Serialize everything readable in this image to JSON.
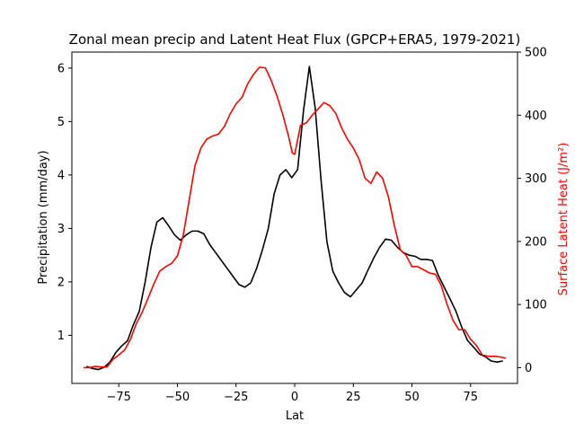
{
  "chart_data": {
    "type": "line",
    "title": "Zonal mean precip and Latent Heat Flux (GPCP+ERA5, 1979-2021)",
    "xlabel": "Lat",
    "ylabel_left": "Precipitation (mm/day)",
    "ylabel_right": "Surface Latent Heat (J/m²)",
    "xlim": [
      -95,
      95
    ],
    "ylim_left": [
      0.1,
      6.3
    ],
    "ylim_right": [
      -25,
      500
    ],
    "x_ticks": [
      -75,
      -50,
      -25,
      0,
      25,
      50,
      75
    ],
    "y_left_ticks": [
      1,
      2,
      3,
      4,
      5,
      6
    ],
    "y_right_ticks": [
      0,
      100,
      200,
      300,
      400,
      500
    ],
    "grid": false,
    "legend": "none",
    "series": [
      {
        "axis": "left",
        "color": "#000000",
        "x": [
          -88.75,
          -86.25,
          -83.75,
          -81.25,
          -78.75,
          -76.25,
          -73.75,
          -71.25,
          -68.75,
          -66.25,
          -63.75,
          -61.25,
          -58.75,
          -56.25,
          -53.75,
          -51.25,
          -48.75,
          -46.25,
          -43.75,
          -41.25,
          -38.75,
          -36.25,
          -33.75,
          -31.25,
          -28.75,
          -26.25,
          -23.75,
          -21.25,
          -18.75,
          -16.25,
          -13.75,
          -11.25,
          -8.75,
          -6.25,
          -3.75,
          -1.25,
          1.25,
          3.75,
          6.25,
          8.75,
          11.25,
          13.75,
          16.25,
          18.75,
          21.25,
          23.75,
          26.25,
          28.75,
          31.25,
          33.75,
          36.25,
          38.75,
          41.25,
          43.75,
          46.25,
          48.75,
          51.25,
          53.75,
          56.25,
          58.75,
          61.25,
          63.75,
          66.25,
          68.75,
          71.25,
          73.75,
          76.25,
          78.75,
          81.25,
          83.75,
          86.25,
          88.75
        ],
        "values": [
          0.42,
          0.38,
          0.36,
          0.4,
          0.5,
          0.68,
          0.8,
          0.9,
          1.2,
          1.45,
          2.0,
          2.65,
          3.12,
          3.2,
          3.05,
          2.88,
          2.78,
          2.88,
          2.95,
          2.95,
          2.9,
          2.7,
          2.55,
          2.4,
          2.25,
          2.1,
          1.95,
          1.9,
          1.98,
          2.25,
          2.6,
          3.0,
          3.65,
          4.0,
          4.1,
          3.95,
          4.1,
          5.2,
          6.03,
          5.25,
          3.9,
          2.75,
          2.2,
          1.98,
          1.8,
          1.72,
          1.85,
          1.98,
          2.22,
          2.45,
          2.65,
          2.8,
          2.78,
          2.65,
          2.55,
          2.5,
          2.48,
          2.42,
          2.42,
          2.4,
          2.12,
          1.9,
          1.68,
          1.45,
          1.15,
          0.9,
          0.78,
          0.65,
          0.6,
          0.52,
          0.5,
          0.52
        ]
      },
      {
        "axis": "right",
        "color": "#ff0000",
        "x": [
          -90,
          -87.5,
          -85,
          -82.5,
          -80,
          -77.5,
          -75,
          -72.5,
          -70,
          -67.5,
          -65,
          -62.5,
          -60,
          -57.5,
          -55,
          -52.5,
          -50,
          -47.5,
          -45,
          -42.5,
          -40,
          -37.5,
          -35,
          -32.5,
          -30,
          -27.5,
          -25,
          -22.5,
          -20,
          -17.5,
          -15,
          -12.5,
          -10,
          -7.5,
          -5,
          -2.5,
          -1,
          0,
          2.5,
          5,
          7.5,
          10,
          12.5,
          15,
          17.5,
          20,
          22.5,
          25,
          27.5,
          30,
          32.5,
          35,
          37.5,
          40,
          42.5,
          45,
          47.5,
          50,
          52.5,
          55,
          57.5,
          60,
          62.5,
          65,
          67.5,
          70,
          72.5,
          75,
          77.5,
          80,
          82.5,
          85,
          87.5,
          90
        ],
        "values": [
          0,
          0,
          2,
          1,
          1,
          13,
          20,
          28,
          45,
          70,
          88,
          110,
          133,
          153,
          160,
          165,
          177,
          210,
          265,
          320,
          348,
          362,
          367,
          370,
          382,
          402,
          418,
          428,
          450,
          465,
          476,
          475,
          455,
          430,
          400,
          365,
          340,
          338,
          384,
          388,
          400,
          410,
          420,
          415,
          403,
          380,
          362,
          348,
          330,
          300,
          292,
          310,
          300,
          270,
          225,
          187,
          178,
          160,
          160,
          155,
          150,
          148,
          130,
          100,
          75,
          60,
          60,
          45,
          35,
          20,
          18,
          18,
          17,
          15
        ]
      }
    ]
  }
}
